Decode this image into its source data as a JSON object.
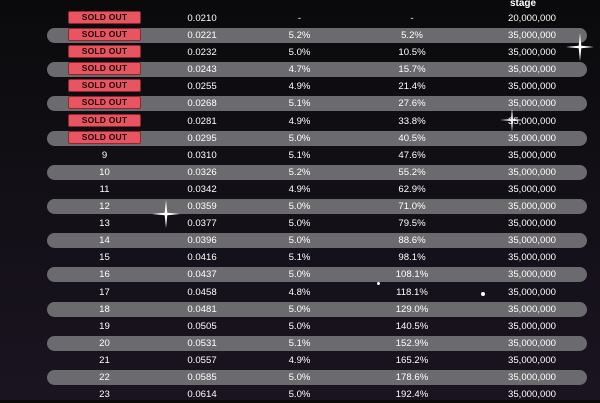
{
  "header": {
    "stage_label": "stage"
  },
  "sold_out_label": "SOLD OUT",
  "decorations": [
    "sparkle-icon",
    "sparkle-icon",
    "sparkle-icon",
    "dot-icon",
    "dot-icon"
  ],
  "rows": [
    {
      "stage": "",
      "sold_out": true,
      "price": "0.0210",
      "increase": "-",
      "roi": "-",
      "tokens": "20,000,000",
      "shaded": false
    },
    {
      "stage": "",
      "sold_out": true,
      "price": "0.0221",
      "increase": "5.2%",
      "roi": "5.2%",
      "tokens": "35,000,000",
      "shaded": true
    },
    {
      "stage": "",
      "sold_out": true,
      "price": "0.0232",
      "increase": "5.0%",
      "roi": "10.5%",
      "tokens": "35,000,000",
      "shaded": false
    },
    {
      "stage": "",
      "sold_out": true,
      "price": "0.0243",
      "increase": "4.7%",
      "roi": "15.7%",
      "tokens": "35,000,000",
      "shaded": true
    },
    {
      "stage": "",
      "sold_out": true,
      "price": "0.0255",
      "increase": "4.9%",
      "roi": "21.4%",
      "tokens": "35,000,000",
      "shaded": false
    },
    {
      "stage": "",
      "sold_out": true,
      "price": "0.0268",
      "increase": "5.1%",
      "roi": "27.6%",
      "tokens": "35,000,000",
      "shaded": true
    },
    {
      "stage": "",
      "sold_out": true,
      "price": "0.0281",
      "increase": "4.9%",
      "roi": "33.8%",
      "tokens": "35,000,000",
      "shaded": false
    },
    {
      "stage": "",
      "sold_out": true,
      "price": "0.0295",
      "increase": "5.0%",
      "roi": "40.5%",
      "tokens": "35,000,000",
      "shaded": true
    },
    {
      "stage": "9",
      "sold_out": false,
      "price": "0.0310",
      "increase": "5.1%",
      "roi": "47.6%",
      "tokens": "35,000,000",
      "shaded": false
    },
    {
      "stage": "10",
      "sold_out": false,
      "price": "0.0326",
      "increase": "5.2%",
      "roi": "55.2%",
      "tokens": "35,000,000",
      "shaded": true
    },
    {
      "stage": "11",
      "sold_out": false,
      "price": "0.0342",
      "increase": "4.9%",
      "roi": "62.9%",
      "tokens": "35,000,000",
      "shaded": false
    },
    {
      "stage": "12",
      "sold_out": false,
      "price": "0.0359",
      "increase": "5.0%",
      "roi": "71.0%",
      "tokens": "35,000,000",
      "shaded": true
    },
    {
      "stage": "13",
      "sold_out": false,
      "price": "0.0377",
      "increase": "5.0%",
      "roi": "79.5%",
      "tokens": "35,000,000",
      "shaded": false
    },
    {
      "stage": "14",
      "sold_out": false,
      "price": "0.0396",
      "increase": "5.0%",
      "roi": "88.6%",
      "tokens": "35,000,000",
      "shaded": true
    },
    {
      "stage": "15",
      "sold_out": false,
      "price": "0.0416",
      "increase": "5.1%",
      "roi": "98.1%",
      "tokens": "35,000,000",
      "shaded": false
    },
    {
      "stage": "16",
      "sold_out": false,
      "price": "0.0437",
      "increase": "5.0%",
      "roi": "108.1%",
      "tokens": "35,000,000",
      "shaded": true
    },
    {
      "stage": "17",
      "sold_out": false,
      "price": "0.0458",
      "increase": "4.8%",
      "roi": "118.1%",
      "tokens": "35,000,000",
      "shaded": false
    },
    {
      "stage": "18",
      "sold_out": false,
      "price": "0.0481",
      "increase": "5.0%",
      "roi": "129.0%",
      "tokens": "35,000,000",
      "shaded": true
    },
    {
      "stage": "19",
      "sold_out": false,
      "price": "0.0505",
      "increase": "5.0%",
      "roi": "140.5%",
      "tokens": "35,000,000",
      "shaded": false
    },
    {
      "stage": "20",
      "sold_out": false,
      "price": "0.0531",
      "increase": "5.1%",
      "roi": "152.9%",
      "tokens": "35,000,000",
      "shaded": true
    },
    {
      "stage": "21",
      "sold_out": false,
      "price": "0.0557",
      "increase": "4.9%",
      "roi": "165.2%",
      "tokens": "35,000,000",
      "shaded": false
    },
    {
      "stage": "22",
      "sold_out": false,
      "price": "0.0585",
      "increase": "5.0%",
      "roi": "178.6%",
      "tokens": "35,000,000",
      "shaded": true
    },
    {
      "stage": "23",
      "sold_out": false,
      "price": "0.0614",
      "increase": "5.0%",
      "roi": "192.4%",
      "tokens": "35,000,000",
      "shaded": false
    }
  ]
}
